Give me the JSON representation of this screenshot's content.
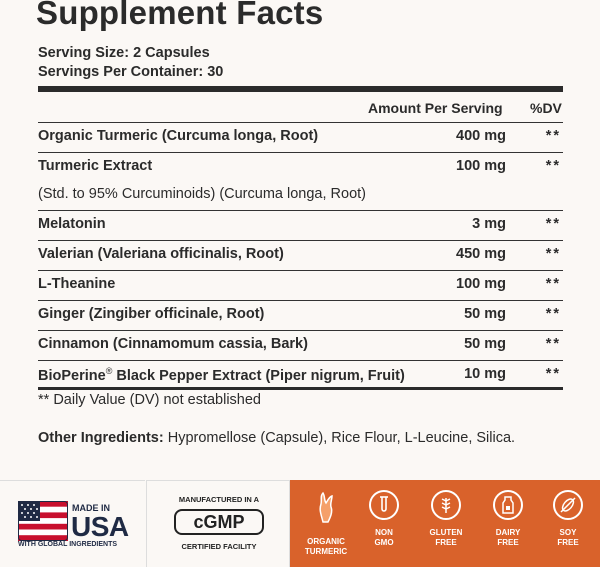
{
  "title": "Supplement Facts",
  "serving_size": "Serving Size: 2 Capsules",
  "servings_per_container": "Servings Per Container: 30",
  "header": {
    "amount": "Amount Per Serving",
    "dv": "%DV"
  },
  "rows": [
    {
      "name": "Organic Turmeric (Curcuma longa, Root)",
      "amount": "400 mg",
      "dv": "**"
    },
    {
      "name": "Turmeric Extract",
      "amount": "100 mg",
      "dv": "**"
    },
    {
      "name": "(Std. to 95% Curcuminoids) (Curcuma longa, Root)",
      "amount": "",
      "dv": ""
    },
    {
      "name": "Melatonin",
      "amount": "3 mg",
      "dv": "**"
    },
    {
      "name": "Valerian (Valeriana officinalis, Root)",
      "amount": "450 mg",
      "dv": "**"
    },
    {
      "name": "L-Theanine",
      "amount": "100 mg",
      "dv": "**"
    },
    {
      "name": "Ginger (Zingiber officinale, Root)",
      "amount": "50 mg",
      "dv": "**"
    },
    {
      "name": "Cinnamon (Cinnamomum cassia, Bark)",
      "amount": "50 mg",
      "dv": "**"
    },
    {
      "name_prefix": "BioPerine",
      "name_mark": "®",
      "name_suffix": " Black Pepper Extract (Piper nigrum, Fruit)",
      "amount": "10 mg",
      "dv": "**"
    }
  ],
  "dv_note": "** Daily Value (DV) not established",
  "other_ingredients_label": "Other Ingredients:",
  "other_ingredients": " Hypromellose (Capsule), Rice Flour, L-Leucine, Silica.",
  "badges": {
    "usa_top": "MADE IN",
    "usa_main": "USA",
    "usa_sub": "WITH GLOBAL INGREDIENTS",
    "cgmp_top": "MANUFACTURED IN A",
    "cgmp_main": "cGMP",
    "cgmp_bottom": "CERTIFIED FACILITY",
    "features": [
      {
        "line1": "ORGANIC",
        "line2": "TURMERIC",
        "icon": "turmeric-icon"
      },
      {
        "line1": "NON",
        "line2": "GMO",
        "icon": "test-tube-icon"
      },
      {
        "line1": "GLUTEN",
        "line2": "FREE",
        "icon": "wheat-icon"
      },
      {
        "line1": "DAIRY",
        "line2": "FREE",
        "icon": "milk-icon"
      },
      {
        "line1": "SOY",
        "line2": "FREE",
        "icon": "soy-icon"
      }
    ]
  },
  "colors": {
    "accent": "#d9622b",
    "text": "#2b2b2b",
    "navy": "#1f2a44",
    "flag_red": "#c8102e"
  }
}
